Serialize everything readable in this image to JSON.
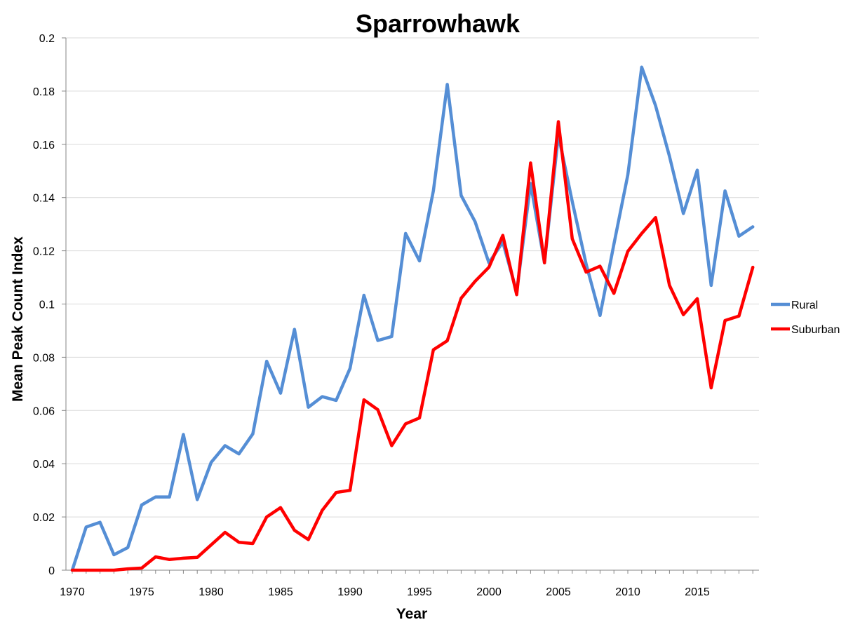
{
  "chart_data": {
    "type": "line",
    "title": "Sparrowhawk",
    "xlabel": "Year",
    "ylabel": "Mean Peak Count Index",
    "xlim": [
      1970,
      2019
    ],
    "ylim": [
      0,
      0.2
    ],
    "x_ticks": [
      1970,
      1975,
      1980,
      1985,
      1990,
      1995,
      2000,
      2005,
      2010,
      2015
    ],
    "x_tick_labels": [
      "1970",
      "1975",
      "1980",
      "1985",
      "1990",
      "1995",
      "2000",
      "2005",
      "2010",
      "2015"
    ],
    "y_ticks": [
      0,
      0.02,
      0.04,
      0.06,
      0.08,
      0.1,
      0.12,
      0.14,
      0.16,
      0.18,
      0.2
    ],
    "y_tick_labels": [
      "0",
      "0.02",
      "0.04",
      "0.06",
      "0.08",
      "0.1",
      "0.12",
      "0.14",
      "0.16",
      "0.18",
      "0.2"
    ],
    "grid": "horizontal",
    "legend_position": "right",
    "x": [
      1970,
      1971,
      1972,
      1973,
      1974,
      1975,
      1976,
      1977,
      1978,
      1979,
      1980,
      1981,
      1982,
      1983,
      1984,
      1985,
      1986,
      1987,
      1988,
      1989,
      1990,
      1991,
      1992,
      1993,
      1994,
      1995,
      1996,
      1997,
      1998,
      1999,
      2000,
      2001,
      2002,
      2003,
      2004,
      2005,
      2006,
      2007,
      2008,
      2009,
      2010,
      2011,
      2012,
      2013,
      2014,
      2015,
      2016,
      2017,
      2018,
      2019
    ],
    "series": [
      {
        "name": "Rural",
        "color": "#558ed5",
        "values": [
          0,
          0.0162,
          0.018,
          0.0058,
          0.0085,
          0.0245,
          0.0275,
          0.0275,
          0.051,
          0.0265,
          0.0405,
          0.0468,
          0.0437,
          0.0512,
          0.0785,
          0.0665,
          0.0905,
          0.0612,
          0.0652,
          0.0638,
          0.0758,
          0.1033,
          0.0863,
          0.0878,
          0.1265,
          0.1162,
          0.1425,
          0.1825,
          0.1408,
          0.131,
          0.1155,
          0.1233,
          0.1045,
          0.1453,
          0.1155,
          0.1635,
          0.1385,
          0.115,
          0.0957,
          0.1225,
          0.1485,
          0.189,
          0.1745,
          0.1555,
          0.134,
          0.1503,
          0.107,
          0.1425,
          0.1255,
          0.129
        ]
      },
      {
        "name": "Suburban",
        "color": "#ff0000",
        "values": [
          0,
          0,
          0,
          0,
          0.0005,
          0.0008,
          0.005,
          0.004,
          0.0045,
          0.0048,
          0.0095,
          0.0142,
          0.0105,
          0.01,
          0.02,
          0.0235,
          0.015,
          0.0115,
          0.0225,
          0.0292,
          0.03,
          0.064,
          0.0603,
          0.0468,
          0.055,
          0.0572,
          0.0828,
          0.0862,
          0.1022,
          0.1085,
          0.1138,
          0.1258,
          0.1035,
          0.153,
          0.1155,
          0.1685,
          0.1245,
          0.112,
          0.1142,
          0.104,
          0.1198,
          0.1265,
          0.1325,
          0.107,
          0.096,
          0.102,
          0.0685,
          0.0938,
          0.0955,
          0.1138
        ]
      }
    ]
  }
}
